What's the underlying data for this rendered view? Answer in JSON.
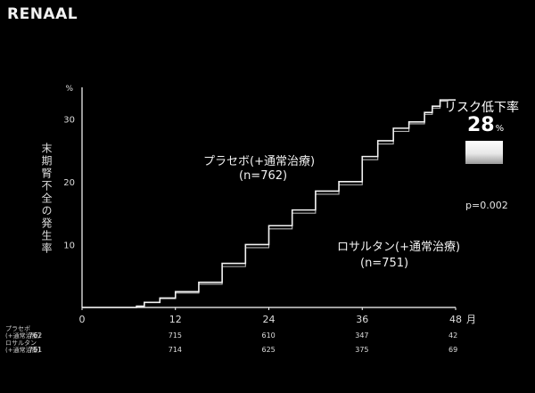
{
  "brand": "RENAAL",
  "title": {
    "line1": "",
    "line2": ""
  },
  "risk_reduction": {
    "label": "リスク低下率",
    "value": "28",
    "unit": "%"
  },
  "p_value": "p=0.002",
  "annotations": {
    "placebo": {
      "label": "プラセボ(+通常治療)",
      "n": "(n=762)"
    },
    "losartan": {
      "label": "ロサルタン(+通常治療)",
      "n": "(n=751)"
    }
  },
  "ylabel": "末期腎不全の発生率",
  "risk_table": {
    "rows": [
      {
        "label1": "プラセボ",
        "label2": "(+通常治療)",
        "values": [
          "762",
          "715",
          "610",
          "347",
          "42"
        ]
      },
      {
        "label1": "ロサルタン",
        "label2": "(+通常治療)",
        "values": [
          "751",
          "714",
          "625",
          "375",
          "69"
        ]
      }
    ]
  },
  "footnotes": [
    "",
    ""
  ],
  "colors": {
    "background": "#000000",
    "curve": "#f2f2f2",
    "axis": "#ffffff",
    "text": "#eeeeee"
  },
  "chart_data": {
    "type": "line",
    "title": "",
    "xlabel": "月",
    "ylabel": "末期腎不全の発生率",
    "y_unit": "%",
    "xlim": [
      0,
      48
    ],
    "ylim": [
      0,
      35
    ],
    "xticks": [
      0,
      12,
      24,
      36,
      48
    ],
    "yticks": [
      10,
      20,
      30
    ],
    "grid": false,
    "series": [
      {
        "name": "プラセボ(+通常治療)",
        "x": [
          0,
          6,
          7,
          8,
          10,
          12,
          15,
          18,
          21,
          24,
          27,
          30,
          33,
          36,
          38,
          40,
          42,
          44,
          45,
          46,
          47
        ],
        "y": [
          0,
          0,
          0.2,
          0.8,
          1.5,
          2.5,
          4,
          7,
          10,
          13,
          15.5,
          18.5,
          20,
          24,
          26.5,
          28.5,
          29.5,
          31,
          32,
          33,
          33
        ]
      },
      {
        "name": "ロサルタン(+通常治療)",
        "x": [
          0,
          6,
          7,
          8,
          10,
          12,
          15,
          18,
          21,
          24,
          27,
          30,
          33,
          36,
          38,
          40,
          42,
          44,
          45,
          46,
          47
        ],
        "y": [
          0,
          0,
          0.2,
          0.8,
          1.4,
          2.3,
          3.7,
          6.5,
          9.5,
          12.5,
          15,
          18,
          19.5,
          23.5,
          26,
          28,
          29.2,
          30.7,
          31.7,
          32.8,
          33
        ]
      }
    ]
  }
}
